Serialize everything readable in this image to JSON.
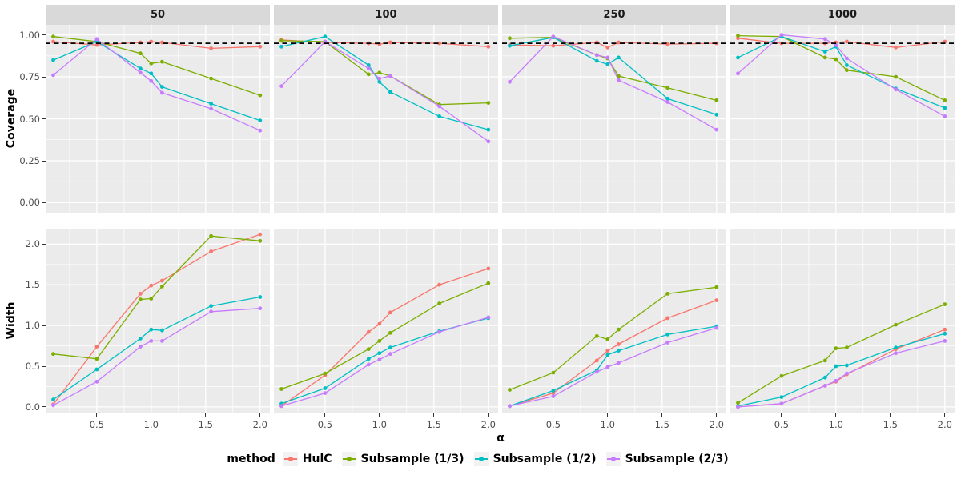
{
  "chart_data": {
    "type": "line",
    "title": "",
    "xlabel": "α",
    "x": [
      0.1,
      0.5,
      0.9,
      1.0,
      1.1,
      1.55,
      2.0
    ],
    "xlim": [
      0.03,
      2.09
    ],
    "x_ticks": [
      0.5,
      1.0,
      1.5,
      2.0
    ],
    "x_tick_labels": [
      "0.5",
      "1.0",
      "1.5",
      "2.0"
    ],
    "x_minor": [
      0.25,
      0.75,
      1.25,
      1.75
    ],
    "facets": [
      "50",
      "100",
      "250",
      "1000"
    ],
    "legend_title": "method",
    "legend_position": "bottom",
    "grid": true,
    "series": [
      {
        "name": "HulC",
        "color": "#F8766D"
      },
      {
        "name": "Subsample (1/3)",
        "color": "#7CAE00"
      },
      {
        "name": "Subsample (1/2)",
        "color": "#00BFC4"
      },
      {
        "name": "Subsample (2/3)",
        "color": "#C77CFF"
      }
    ],
    "theme": {
      "panel_bg": "#EBEBEB",
      "grid_color": "#FFFFFF",
      "strip_bg": "#D9D9D9",
      "tick_text": "#4D4D4D",
      "ref_line_color": "#000000"
    },
    "rows": [
      {
        "ylabel": "Coverage",
        "ylim": [
          -0.06,
          1.06
        ],
        "y_ticks": [
          1.0,
          0.75,
          0.5,
          0.25,
          0.0
        ],
        "y_tick_labels": [
          "1.00",
          "0.75",
          "0.50",
          "0.25",
          "0.00"
        ],
        "y_minor": [
          0.125,
          0.375,
          0.625,
          0.875
        ],
        "ref_line": {
          "value": 0.95,
          "style": "dashed",
          "color": "#000000"
        },
        "values": {
          "50": [
            [
              0.96,
              0.94,
              0.955,
              0.96,
              0.955,
              0.92,
              0.93
            ],
            [
              0.99,
              0.96,
              0.89,
              0.83,
              0.84,
              0.74,
              0.64
            ],
            [
              0.85,
              0.96,
              0.8,
              0.77,
              0.69,
              0.59,
              0.49
            ],
            [
              0.76,
              0.975,
              0.775,
              0.725,
              0.655,
              0.56,
              0.43
            ]
          ],
          "100": [
            [
              0.97,
              0.955,
              0.95,
              0.945,
              0.955,
              0.95,
              0.93
            ],
            [
              0.965,
              0.96,
              0.765,
              0.775,
              0.755,
              0.585,
              0.595
            ],
            [
              0.93,
              0.99,
              0.82,
              0.72,
              0.66,
              0.515,
              0.435
            ],
            [
              0.695,
              0.96,
              0.8,
              0.74,
              0.755,
              0.575,
              0.365
            ]
          ],
          "250": [
            [
              0.94,
              0.935,
              0.955,
              0.925,
              0.955,
              0.945,
              0.95
            ],
            [
              0.98,
              0.985,
              0.88,
              0.86,
              0.755,
              0.685,
              0.61
            ],
            [
              0.935,
              0.985,
              0.845,
              0.825,
              0.865,
              0.62,
              0.525
            ],
            [
              0.72,
              0.99,
              0.88,
              0.865,
              0.73,
              0.6,
              0.435
            ]
          ],
          "1000": [
            [
              0.98,
              0.95,
              0.95,
              0.955,
              0.96,
              0.925,
              0.96
            ],
            [
              0.995,
              0.99,
              0.865,
              0.855,
              0.79,
              0.75,
              0.61
            ],
            [
              0.865,
              0.99,
              0.9,
              0.93,
              0.82,
              0.68,
              0.565
            ],
            [
              0.77,
              1.0,
              0.975,
              0.94,
              0.86,
              0.675,
              0.515
            ]
          ]
        }
      },
      {
        "ylabel": "Width",
        "ylim": [
          -0.08,
          2.19
        ],
        "y_ticks": [
          2.0,
          1.5,
          1.0,
          0.5,
          0.0
        ],
        "y_tick_labels": [
          "2.0",
          "1.5",
          "1.0",
          "0.5",
          "0.0"
        ],
        "y_minor": [
          0.25,
          0.75,
          1.25,
          1.75
        ],
        "ref_line": null,
        "values": {
          "50": [
            [
              0.03,
              0.74,
              1.39,
              1.49,
              1.55,
              1.91,
              2.12
            ],
            [
              0.65,
              0.59,
              1.32,
              1.33,
              1.48,
              2.1,
              2.04
            ],
            [
              0.09,
              0.46,
              0.84,
              0.95,
              0.94,
              1.24,
              1.35
            ],
            [
              0.02,
              0.31,
              0.74,
              0.81,
              0.81,
              1.17,
              1.21
            ]
          ],
          "100": [
            [
              0.01,
              0.39,
              0.92,
              1.02,
              1.16,
              1.5,
              1.7
            ],
            [
              0.22,
              0.41,
              0.71,
              0.81,
              0.91,
              1.27,
              1.52
            ],
            [
              0.04,
              0.23,
              0.59,
              0.66,
              0.73,
              0.93,
              1.09
            ],
            [
              0.01,
              0.17,
              0.52,
              0.58,
              0.65,
              0.92,
              1.1
            ]
          ],
          "250": [
            [
              0.01,
              0.17,
              0.57,
              0.69,
              0.77,
              1.09,
              1.31
            ],
            [
              0.21,
              0.42,
              0.87,
              0.83,
              0.95,
              1.39,
              1.47
            ],
            [
              0.01,
              0.2,
              0.45,
              0.64,
              0.69,
              0.89,
              0.99
            ],
            [
              0.01,
              0.13,
              0.43,
              0.49,
              0.54,
              0.79,
              0.97
            ]
          ],
          "1000": [
            [
              0.0,
              0.04,
              0.26,
              0.31,
              0.4,
              0.71,
              0.95
            ],
            [
              0.05,
              0.38,
              0.57,
              0.72,
              0.73,
              1.01,
              1.26
            ],
            [
              0.01,
              0.12,
              0.36,
              0.5,
              0.51,
              0.73,
              0.9
            ],
            [
              0.0,
              0.04,
              0.26,
              0.32,
              0.41,
              0.66,
              0.81
            ]
          ]
        }
      }
    ]
  }
}
